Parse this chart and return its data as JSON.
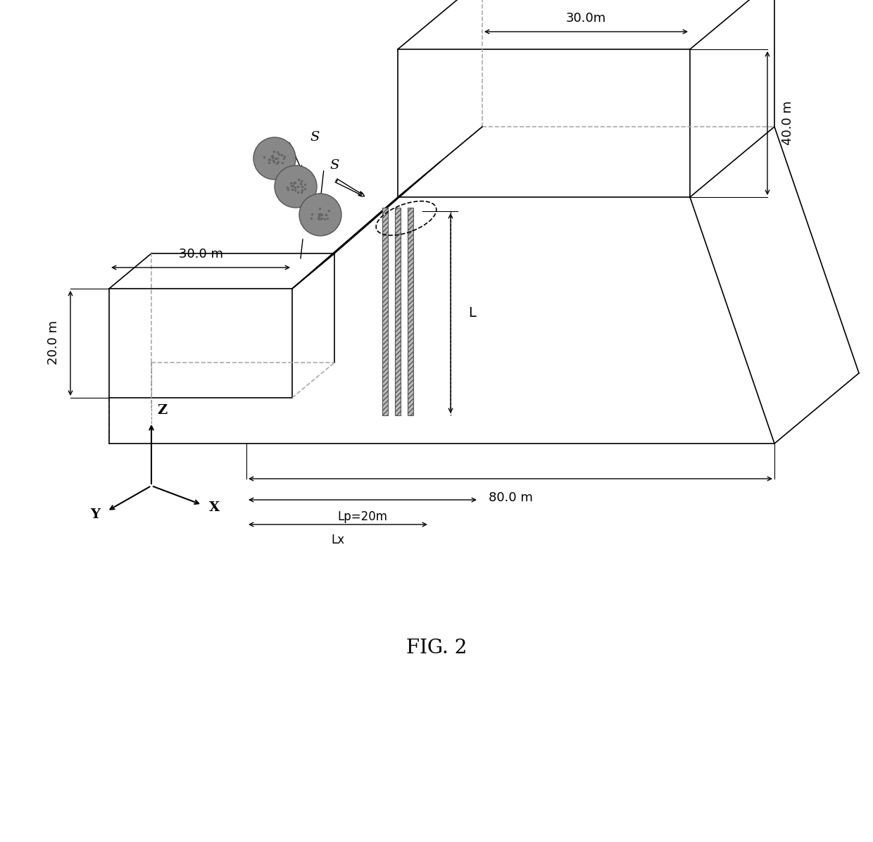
{
  "title": "FIG. 2",
  "background_color": "#ffffff",
  "line_color": "#000000",
  "dim_color": "#000000",
  "pile_color": "#aaaaaa",
  "circle_color": "#888888",
  "dim_30m_top": "30.0m",
  "dim_30m_left": "30.0 m",
  "dim_40m": "40.0 m",
  "dim_20m": "20.0 m",
  "dim_80m": "80.0 m",
  "dim_Lp": "Lp=20m",
  "dim_Lx": "Lx",
  "dim_L": "L",
  "label_S1": "S",
  "label_S2": "S",
  "label_Z": "Z",
  "label_Y": "Y",
  "label_X": "X"
}
